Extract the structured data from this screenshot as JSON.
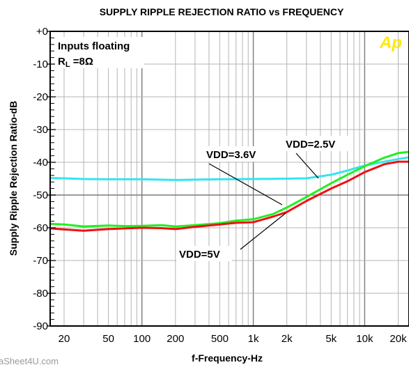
{
  "chart_data": {
    "type": "line",
    "title": "SUPPLY RIPPLE REJECTION RATIO vs  FREQUENCY",
    "xlabel": "f-Frequency-Hz",
    "ylabel": "Supply Ripple Rejection Ratio-dB",
    "x_scale": "log",
    "xlim": [
      15,
      25000
    ],
    "ylim": [
      -90,
      0
    ],
    "x_ticks": [
      {
        "value": 20,
        "label": "20"
      },
      {
        "value": 50,
        "label": "50"
      },
      {
        "value": 100,
        "label": "100"
      },
      {
        "value": 200,
        "label": "200"
      },
      {
        "value": 500,
        "label": "500"
      },
      {
        "value": 1000,
        "label": "1k"
      },
      {
        "value": 2000,
        "label": "2k"
      },
      {
        "value": 5000,
        "label": "5k"
      },
      {
        "value": 10000,
        "label": "10k"
      },
      {
        "value": 20000,
        "label": "20k"
      }
    ],
    "y_ticks": [
      {
        "value": 0,
        "label": "+0"
      },
      {
        "value": -10,
        "label": "-10"
      },
      {
        "value": -20,
        "label": "-20"
      },
      {
        "value": -30,
        "label": "-30"
      },
      {
        "value": -40,
        "label": "-40"
      },
      {
        "value": -50,
        "label": "-50"
      },
      {
        "value": -60,
        "label": "-60"
      },
      {
        "value": -70,
        "label": "-70"
      },
      {
        "value": -80,
        "label": "-80"
      },
      {
        "value": -90,
        "label": "-90"
      }
    ],
    "grid": true,
    "series": [
      {
        "name": "VDD=2.5V",
        "color": "#33e5f0",
        "x": [
          15,
          20,
          30,
          50,
          100,
          200,
          300,
          500,
          1000,
          2000,
          3000,
          5000,
          7000,
          10000,
          15000,
          20000,
          25000
        ],
        "y": [
          -44.8,
          -44.9,
          -45.1,
          -45.2,
          -45.2,
          -45.4,
          -45.3,
          -45.2,
          -45.1,
          -45.0,
          -44.9,
          -43.8,
          -42.5,
          -41.0,
          -39.8,
          -39.0,
          -38.5
        ]
      },
      {
        "name": "VDD=3.6V",
        "color": "#22ee22",
        "x": [
          15,
          20,
          30,
          50,
          70,
          100,
          150,
          200,
          300,
          500,
          700,
          1000,
          1500,
          2000,
          3000,
          5000,
          7000,
          10000,
          15000,
          20000,
          25000
        ],
        "y": [
          -58.8,
          -59.0,
          -59.6,
          -59.3,
          -59.5,
          -59.4,
          -59.2,
          -59.6,
          -59.2,
          -58.6,
          -57.8,
          -57.4,
          -55.8,
          -53.8,
          -50.6,
          -46.4,
          -43.8,
          -41.2,
          -38.6,
          -37.2,
          -36.8
        ]
      },
      {
        "name": "VDD=5V",
        "color": "#ee1111",
        "x": [
          15,
          20,
          30,
          50,
          70,
          100,
          150,
          200,
          300,
          500,
          700,
          1000,
          1500,
          2000,
          3000,
          5000,
          7000,
          10000,
          15000,
          20000,
          25000
        ],
        "y": [
          -60.2,
          -60.5,
          -60.9,
          -60.4,
          -60.2,
          -60.0,
          -60.1,
          -60.4,
          -59.7,
          -59.0,
          -58.5,
          -58.3,
          -56.6,
          -55.2,
          -51.8,
          -48.0,
          -45.8,
          -43.0,
          -40.6,
          -39.8,
          -39.8
        ]
      }
    ],
    "annotations": {
      "conditions_line1": "Inputs floating",
      "conditions_line2_prefix": "R",
      "conditions_line2_sub": "L",
      "conditions_line2_suffix": " =8Ω",
      "vdd_2_5": "VDD=2.5V",
      "vdd_3_6": "VDD=3.6V",
      "vdd_5": "VDD=5V"
    },
    "logo": "Ap",
    "watermark": "aSheet4U.com"
  }
}
